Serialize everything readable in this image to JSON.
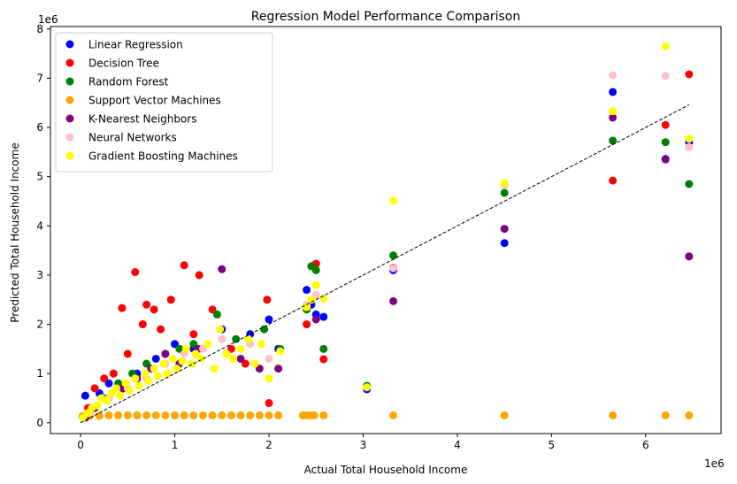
{
  "chart_data": {
    "type": "scatter",
    "title": "Regression Model Performance Comparison",
    "xlabel": "Actual Total Household Income",
    "ylabel": "Predicted Total Household Income",
    "x_offset_label": "1e6",
    "y_offset_label": "1e6",
    "xlim": [
      -0.32,
      6.8
    ],
    "ylim": [
      -0.22,
      8.05
    ],
    "x_ticks": [
      0,
      1,
      2,
      3,
      4,
      5,
      6
    ],
    "y_ticks": [
      0,
      1,
      2,
      3,
      4,
      5,
      6,
      7,
      8
    ],
    "x_tick_labels": [
      "0",
      "1",
      "2",
      "3",
      "4",
      "5",
      "6"
    ],
    "y_tick_labels": [
      "0",
      "1",
      "2",
      "3",
      "4",
      "5",
      "6",
      "7",
      "8"
    ],
    "grid": false,
    "legend_position": "top-left",
    "reference_line": {
      "style": "dashed",
      "color": "#000000",
      "from": [
        0,
        0
      ],
      "to": [
        6.46,
        6.46
      ]
    },
    "series": [
      {
        "name": "Linear Regression",
        "color": "#0000ff",
        "x": [
          0.05,
          0.1,
          0.2,
          0.3,
          0.45,
          0.6,
          0.8,
          1.0,
          1.2,
          1.5,
          1.8,
          2.0,
          2.1,
          2.4,
          2.45,
          2.5,
          2.58,
          3.04,
          3.32,
          4.5,
          5.65,
          6.21,
          6.46
        ],
        "y": [
          0.55,
          0.3,
          0.6,
          0.8,
          0.7,
          1.0,
          1.3,
          1.6,
          1.5,
          1.9,
          1.8,
          2.1,
          1.5,
          2.7,
          2.4,
          2.2,
          2.15,
          0.68,
          3.1,
          3.65,
          6.72,
          5.36,
          5.7
        ]
      },
      {
        "name": "Decision Tree",
        "color": "#ff0000",
        "x": [
          0.08,
          0.15,
          0.25,
          0.35,
          0.44,
          0.5,
          0.58,
          0.7,
          0.85,
          0.96,
          1.1,
          1.2,
          1.26,
          1.4,
          1.6,
          1.75,
          1.98,
          2.0,
          2.4,
          2.48,
          2.5,
          2.58,
          3.32,
          5.65,
          6.21,
          6.46,
          0.66,
          0.78
        ],
        "y": [
          0.3,
          0.7,
          0.9,
          1.0,
          2.33,
          1.4,
          3.06,
          2.4,
          1.9,
          2.5,
          3.2,
          1.8,
          3.0,
          2.3,
          1.5,
          1.2,
          2.5,
          0.4,
          2.0,
          3.2,
          3.23,
          1.29,
          3.15,
          4.92,
          6.05,
          7.08,
          2.0,
          2.3
        ]
      },
      {
        "name": "Random Forest",
        "color": "#008000",
        "x": [
          0.1,
          0.25,
          0.4,
          0.55,
          0.7,
          0.9,
          1.05,
          1.2,
          1.45,
          1.65,
          1.95,
          2.12,
          2.4,
          2.45,
          2.5,
          2.58,
          3.04,
          3.32,
          4.5,
          5.65,
          6.21,
          6.46
        ],
        "y": [
          0.2,
          0.5,
          0.8,
          1.0,
          1.2,
          1.4,
          1.5,
          1.6,
          2.2,
          1.7,
          1.9,
          1.5,
          2.3,
          3.18,
          3.1,
          1.5,
          0.75,
          3.4,
          4.67,
          5.73,
          5.7,
          4.85
        ]
      },
      {
        "name": "Support Vector Machines",
        "color": "#ffa500",
        "x": [
          0.02,
          0.05,
          0.1,
          0.2,
          0.3,
          0.4,
          0.5,
          0.6,
          0.7,
          0.8,
          0.9,
          1.0,
          1.1,
          1.2,
          1.3,
          1.4,
          1.5,
          1.6,
          1.7,
          1.8,
          1.9,
          2.0,
          2.1,
          2.36,
          2.4,
          2.44,
          2.48,
          2.58,
          3.32,
          4.5,
          5.65,
          6.21,
          6.46
        ],
        "y": [
          0.13,
          0.13,
          0.14,
          0.14,
          0.15,
          0.15,
          0.15,
          0.15,
          0.15,
          0.15,
          0.15,
          0.15,
          0.15,
          0.15,
          0.15,
          0.15,
          0.15,
          0.15,
          0.15,
          0.15,
          0.15,
          0.15,
          0.15,
          0.15,
          0.15,
          0.15,
          0.15,
          0.15,
          0.15,
          0.15,
          0.15,
          0.15,
          0.15
        ]
      },
      {
        "name": "K-Nearest Neighbors",
        "color": "#800080",
        "x": [
          0.05,
          0.15,
          0.3,
          0.45,
          0.6,
          0.75,
          0.9,
          1.05,
          1.25,
          1.5,
          1.7,
          1.9,
          2.1,
          2.5,
          3.32,
          4.5,
          5.65,
          6.21,
          6.46
        ],
        "y": [
          0.1,
          0.3,
          0.5,
          0.7,
          0.9,
          1.1,
          1.4,
          1.2,
          1.5,
          3.12,
          1.3,
          1.1,
          1.1,
          2.1,
          2.47,
          3.94,
          6.2,
          5.35,
          3.38
        ]
      },
      {
        "name": "Neural Networks",
        "color": "#ffc0cb",
        "x": [
          0.1,
          0.3,
          0.5,
          0.7,
          0.9,
          1.1,
          1.3,
          1.5,
          1.8,
          2.0,
          2.4,
          2.5,
          3.32,
          4.5,
          5.65,
          6.21,
          6.46
        ],
        "y": [
          0.2,
          0.5,
          0.7,
          0.9,
          1.2,
          1.4,
          1.5,
          1.7,
          1.6,
          1.3,
          2.4,
          2.6,
          3.14,
          4.83,
          7.06,
          7.05,
          5.6
        ]
      },
      {
        "name": "Gradient Boosting Machines",
        "color": "#ffff00",
        "x": [
          0.03,
          0.08,
          0.12,
          0.18,
          0.22,
          0.28,
          0.33,
          0.38,
          0.42,
          0.48,
          0.52,
          0.58,
          0.62,
          0.68,
          0.72,
          0.78,
          0.82,
          0.88,
          0.92,
          0.98,
          1.02,
          1.08,
          1.12,
          1.18,
          1.22,
          1.28,
          1.35,
          1.42,
          1.48,
          1.55,
          1.62,
          1.7,
          1.78,
          1.85,
          1.92,
          2.0,
          2.12,
          2.4,
          2.45,
          2.5,
          2.58,
          3.04,
          3.32,
          4.5,
          5.65,
          6.21,
          6.46
        ],
        "y": [
          0.1,
          0.2,
          0.3,
          0.35,
          0.5,
          0.45,
          0.6,
          0.7,
          0.55,
          0.8,
          0.65,
          0.9,
          0.75,
          1.0,
          0.85,
          1.1,
          0.95,
          1.2,
          1.0,
          1.3,
          1.1,
          1.25,
          1.5,
          1.2,
          1.4,
          1.3,
          1.6,
          1.1,
          1.9,
          1.4,
          1.3,
          1.5,
          1.7,
          1.2,
          1.6,
          0.9,
          1.45,
          2.35,
          2.5,
          2.8,
          2.52,
          0.72,
          4.51,
          4.87,
          6.33,
          7.65,
          5.77
        ]
      }
    ]
  }
}
